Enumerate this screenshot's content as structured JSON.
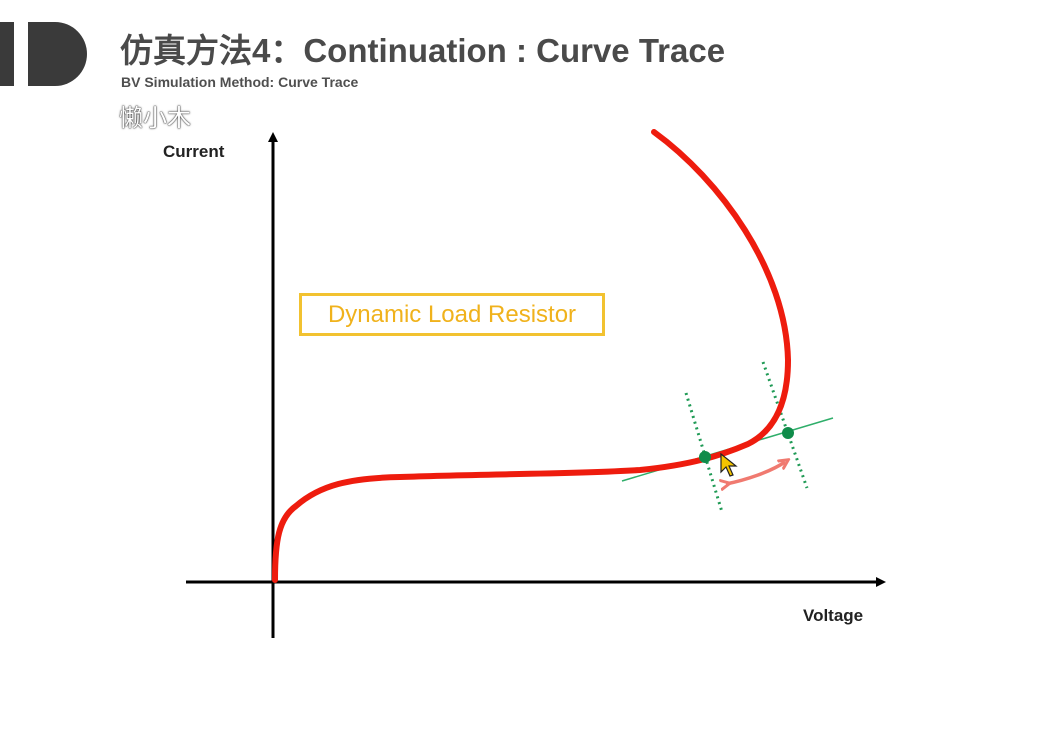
{
  "header": {
    "title": "仿真方法4：Continuation : Curve Trace",
    "subtitle": "BV Simulation Method: Curve Trace",
    "watermark": "懒小木"
  },
  "diagram": {
    "y_axis_label": "Current",
    "x_axis_label": "Voltage",
    "callout": "Dynamic Load Resistor"
  },
  "colors": {
    "curve": "#ee1c0e",
    "callout": "#f2c230",
    "load_line": "#2fae6a",
    "operating_point": "#0f8c4a",
    "move_arrow": "#f07a70",
    "cursor": "#f5c400"
  }
}
